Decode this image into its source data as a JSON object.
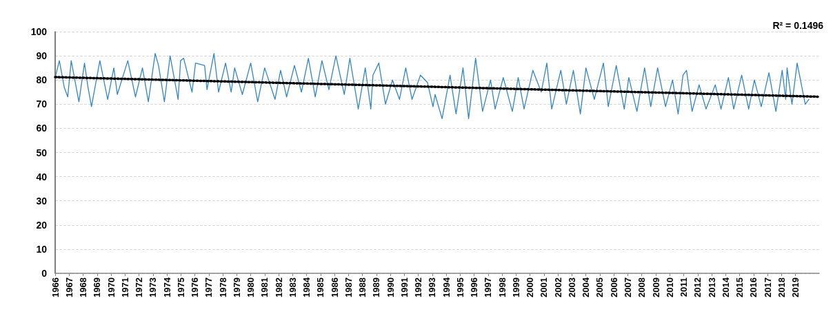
{
  "chart_data": {
    "type": "line",
    "marker": "none",
    "grid": "y",
    "xlim": [
      1966,
      2020.7
    ],
    "ylim": [
      0,
      100
    ],
    "yticks": [
      0,
      10,
      20,
      30,
      40,
      50,
      60,
      70,
      80,
      90,
      100
    ],
    "xticks": [
      1966,
      1967,
      1968,
      1969,
      1970,
      1971,
      1972,
      1973,
      1974,
      1975,
      1976,
      1977,
      1978,
      1979,
      1980,
      1981,
      1982,
      1983,
      1984,
      1985,
      1986,
      1987,
      1988,
      1989,
      1990,
      1991,
      1992,
      1993,
      1994,
      1995,
      1996,
      1997,
      1998,
      1999,
      2000,
      2001,
      2002,
      2003,
      2004,
      2005,
      2006,
      2007,
      2008,
      2009,
      2010,
      2011,
      2012,
      2013,
      2014,
      2015,
      2016,
      2017,
      2018,
      2019
    ],
    "annotations": [
      "R² = 0.1496"
    ],
    "series": [
      {
        "color": "#2f86c8",
        "line_style": "solid",
        "x": [
          1966,
          1966.3,
          1966.65,
          1966.9,
          1967.15,
          1967.7,
          1968.1,
          1968.35,
          1968.6,
          1969.2,
          1969.76,
          1970.2,
          1970.45,
          1971.2,
          1971.75,
          1972.25,
          1972.67,
          1973.16,
          1973.4,
          1973.82,
          1974.23,
          1974.8,
          1974.98,
          1975.2,
          1975.8,
          1976.05,
          1976.7,
          1976.87,
          1977.37,
          1977.7,
          1978.2,
          1978.6,
          1978.85,
          1979.4,
          1980.0,
          1980.5,
          1981.0,
          1981.74,
          1982.14,
          1982.57,
          1983.13,
          1983.63,
          1984.13,
          1984.62,
          1985.1,
          1985.6,
          1986.1,
          1986.7,
          1987.1,
          1987.7,
          1988.2,
          1988.6,
          1988.75,
          1989.17,
          1989.65,
          1990.15,
          1990.65,
          1991.1,
          1991.55,
          1992.15,
          1992.65,
          1993.05,
          1993.2,
          1993.7,
          1994.27,
          1994.7,
          1995.2,
          1995.6,
          1996.1,
          1996.6,
          1997.17,
          1997.5,
          1998.08,
          1998.73,
          1999.15,
          1999.57,
          2000.2,
          2000.8,
          2001.2,
          2001.55,
          2002.2,
          2002.6,
          2003.1,
          2003.6,
          2004.0,
          2004.6,
          2005.25,
          2005.6,
          2006.17,
          2006.74,
          2007.07,
          2007.65,
          2008.2,
          2008.64,
          2009.13,
          2009.7,
          2010.2,
          2010.6,
          2010.95,
          2011.2,
          2011.6,
          2012.1,
          2012.6,
          2013.26,
          2013.67,
          2014.2,
          2014.58,
          2015.15,
          2015.65,
          2016.06,
          2016.55,
          2017.1,
          2017.6,
          2018.05,
          2018.3,
          2018.4,
          2018.75,
          2019.12,
          2019.7,
          2019.96
        ],
        "values": [
          81,
          88,
          77,
          73,
          88,
          71,
          87,
          77,
          69,
          88,
          72,
          85,
          74,
          88,
          73,
          85,
          71,
          91,
          86,
          71,
          90,
          72,
          88,
          89,
          75,
          87,
          86,
          76,
          91,
          75,
          87,
          75,
          85,
          74,
          87,
          71,
          85,
          72,
          84,
          73,
          86,
          75,
          89,
          73,
          88,
          76,
          90,
          74,
          89,
          68,
          85,
          68,
          82,
          87,
          70,
          80,
          72,
          85,
          72,
          82,
          79,
          69,
          74,
          64,
          82,
          66,
          85,
          64,
          89,
          67,
          80,
          68,
          81,
          67,
          81,
          68,
          84,
          75,
          87,
          68,
          84,
          70,
          84,
          66,
          85,
          72,
          87,
          69,
          86,
          68,
          81,
          67,
          85,
          69,
          85,
          69,
          80,
          66,
          82,
          84,
          67,
          78,
          68,
          78,
          68,
          81,
          68,
          82,
          68,
          80,
          69,
          83,
          67,
          84,
          72,
          85,
          70,
          87,
          70,
          72
        ]
      },
      {
        "type": "line",
        "color": "#000000",
        "line_style": "dotted",
        "x": [
          1966,
          2020.6
        ],
        "values": [
          81.2,
          73.1
        ]
      }
    ]
  }
}
